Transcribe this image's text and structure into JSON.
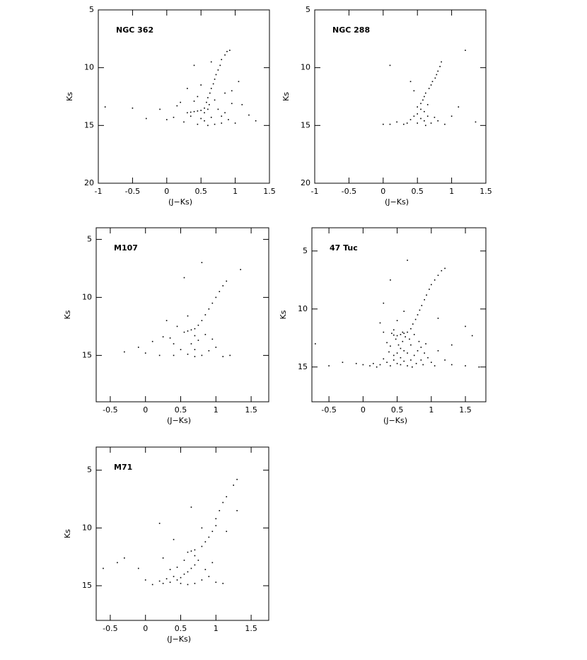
{
  "chart_data": [
    {
      "type": "scatter",
      "title": "NGC 362",
      "xlabel": "(J−Ks)",
      "ylabel": "Ks",
      "color": "#000000",
      "yinvert": true,
      "xlim": [
        -1,
        1.5
      ],
      "ylim": [
        5,
        20
      ],
      "xticks": [
        -1,
        -0.5,
        0,
        0.5,
        1,
        1.5
      ],
      "yticks": [
        5,
        10,
        15,
        20
      ],
      "x": [
        0.88,
        0.85,
        0.92,
        0.8,
        0.78,
        0.75,
        0.72,
        0.7,
        0.68,
        0.65,
        0.63,
        0.6,
        0.58,
        0.62,
        0.55,
        0.5,
        0.45,
        0.4,
        0.35,
        0.55,
        0.6,
        0.3,
        0.7,
        0.45,
        0.5,
        0.3,
        0.65,
        0.4,
        0.2,
        0.1,
        0.0,
        -0.1,
        -0.3,
        -0.5,
        -0.9,
        0.8,
        0.9,
        1.0,
        1.1,
        1.2,
        1.3,
        0.75,
        0.85,
        0.65,
        0.55,
        0.45,
        0.35,
        0.25,
        0.95,
        1.05,
        0.7,
        0.6,
        0.8,
        0.5,
        0.15,
        0.95,
        0.4,
        0.85
      ],
      "values": [
        8.6,
        8.9,
        8.5,
        9.3,
        9.8,
        10.2,
        10.6,
        11.0,
        11.4,
        11.8,
        12.2,
        12.6,
        13.0,
        13.2,
        13.5,
        13.7,
        13.75,
        13.8,
        13.85,
        13.9,
        13.6,
        13.9,
        12.8,
        12.5,
        11.5,
        11.8,
        9.5,
        9.8,
        13.0,
        14.3,
        14.5,
        13.6,
        14.4,
        13.5,
        13.4,
        14.2,
        14.5,
        14.8,
        13.2,
        14.1,
        14.6,
        13.6,
        13.9,
        14.3,
        14.6,
        14.9,
        14.2,
        14.7,
        12.0,
        11.2,
        14.9,
        15.0,
        14.8,
        14.4,
        13.3,
        13.1,
        12.9,
        12.2
      ]
    },
    {
      "type": "scatter",
      "title": "NGC 288",
      "xlabel": "(J−Ks)",
      "ylabel": "Ks",
      "color": "#000000",
      "yinvert": true,
      "xlim": [
        -1,
        1.5
      ],
      "ylim": [
        5,
        20
      ],
      "xticks": [
        -1,
        -0.5,
        0,
        0.5,
        1,
        1.5
      ],
      "yticks": [
        5,
        10,
        15,
        20
      ],
      "x": [
        1.2,
        0.85,
        0.83,
        0.8,
        0.78,
        0.76,
        0.72,
        0.7,
        0.67,
        0.62,
        0.6,
        0.58,
        0.55,
        0.5,
        0.55,
        0.6,
        0.5,
        0.45,
        0.55,
        0.6,
        0.65,
        0.4,
        0.35,
        0.3,
        0.2,
        0.1,
        0.0,
        0.7,
        0.8,
        0.9,
        1.0,
        1.1,
        1.35,
        0.1,
        0.4,
        0.45,
        0.65,
        0.5,
        0.75,
        0.62
      ],
      "values": [
        8.5,
        9.5,
        9.9,
        10.3,
        10.6,
        10.9,
        11.2,
        11.5,
        11.8,
        12.2,
        12.5,
        12.8,
        13.1,
        13.4,
        13.6,
        13.8,
        14.0,
        14.2,
        14.4,
        14.6,
        14.2,
        14.5,
        14.8,
        14.9,
        14.7,
        14.9,
        14.9,
        14.8,
        14.6,
        14.9,
        14.2,
        13.4,
        14.7,
        9.8,
        11.2,
        12.0,
        13.2,
        14.8,
        14.3,
        15.0
      ]
    },
    {
      "type": "scatter",
      "title": "M107",
      "xlabel": "(J−Ks)",
      "ylabel": "Ks",
      "color": "#000000",
      "yinvert": true,
      "xlim": [
        -0.7,
        1.75
      ],
      "ylim": [
        4,
        19
      ],
      "xticks": [
        -0.5,
        0,
        0.5,
        1,
        1.5
      ],
      "yticks": [
        5,
        10,
        15
      ],
      "x": [
        1.35,
        0.8,
        0.55,
        1.15,
        1.1,
        1.05,
        1.0,
        0.95,
        0.9,
        0.85,
        0.8,
        0.75,
        0.7,
        0.65,
        0.6,
        0.55,
        0.7,
        0.75,
        0.65,
        0.7,
        0.6,
        0.5,
        0.4,
        0.35,
        0.25,
        0.1,
        0.0,
        -0.1,
        -0.3,
        0.2,
        0.4,
        0.8,
        0.9,
        1.0,
        1.1,
        1.2,
        0.85,
        0.95,
        0.45,
        0.6,
        0.3,
        0.7
      ],
      "values": [
        7.6,
        7.0,
        8.3,
        8.6,
        9.0,
        9.5,
        10.0,
        10.5,
        11.0,
        11.5,
        12.0,
        12.4,
        12.7,
        12.8,
        12.9,
        13.0,
        13.3,
        13.7,
        14.0,
        14.5,
        14.9,
        14.5,
        14.0,
        13.5,
        13.4,
        13.8,
        14.8,
        14.3,
        14.7,
        15.0,
        15.0,
        15.0,
        14.6,
        14.3,
        15.1,
        15.0,
        13.2,
        13.6,
        12.5,
        11.6,
        12.0,
        15.1
      ]
    },
    {
      "type": "scatter",
      "title": "47 Tuc",
      "xlabel": "(J−Ks)",
      "ylabel": "Ks",
      "color": "#000000",
      "yinvert": true,
      "xlim": [
        -0.75,
        1.8
      ],
      "ylim": [
        3,
        18
      ],
      "xticks": [
        -0.5,
        0,
        0.5,
        1,
        1.5
      ],
      "yticks": [
        5,
        10,
        15
      ],
      "x": [
        1.2,
        1.15,
        1.1,
        1.05,
        1.0,
        0.97,
        0.93,
        0.9,
        0.86,
        0.83,
        0.8,
        0.77,
        0.73,
        0.7,
        0.65,
        0.6,
        0.55,
        0.5,
        0.45,
        0.62,
        0.68,
        0.58,
        0.52,
        0.55,
        0.6,
        0.5,
        0.45,
        0.55,
        0.6,
        0.5,
        0.4,
        0.35,
        0.3,
        0.25,
        0.2,
        0.15,
        0.1,
        0.0,
        -0.1,
        -0.3,
        -0.5,
        0.65,
        0.7,
        0.75,
        0.8,
        0.85,
        0.9,
        0.95,
        1.0,
        1.05,
        0.88,
        0.78,
        0.92,
        1.1,
        1.2,
        1.3,
        1.5,
        1.7,
        0.4,
        0.35,
        0.3,
        0.25,
        0.45,
        0.5,
        0.6,
        0.3,
        0.4,
        0.65,
        1.5,
        1.6,
        1.3,
        0.7,
        0.65,
        0.55,
        0.45,
        0.85,
        0.72,
        0.38,
        -0.7,
        1.1,
        0.48,
        0.42,
        0.58,
        0.75,
        0.82
      ],
      "values": [
        6.5,
        6.7,
        7.1,
        7.5,
        7.9,
        8.3,
        8.8,
        9.2,
        9.7,
        10.1,
        10.5,
        10.9,
        11.3,
        11.7,
        12.0,
        12.1,
        12.2,
        12.3,
        12.25,
        12.4,
        12.6,
        12.8,
        13.1,
        13.4,
        13.6,
        13.8,
        14.0,
        14.2,
        14.5,
        14.7,
        14.9,
        14.6,
        14.3,
        14.8,
        15.0,
        14.7,
        14.9,
        14.8,
        14.7,
        14.6,
        14.9,
        14.9,
        14.4,
        14.0,
        13.6,
        13.3,
        13.8,
        14.2,
        14.6,
        14.9,
        14.8,
        14.7,
        13.0,
        13.6,
        14.4,
        14.8,
        14.9,
        15.0,
        13.2,
        12.9,
        12.0,
        11.2,
        11.8,
        11.0,
        10.2,
        9.5,
        7.5,
        5.8,
        11.5,
        12.3,
        13.1,
        13.1,
        13.8,
        14.8,
        14.4,
        14.4,
        15.0,
        13.7,
        13.0,
        10.8,
        12.6,
        12.1,
        12.0,
        12.2,
        12.8
      ]
    },
    {
      "type": "scatter",
      "title": "M71",
      "xlabel": "(J−Ks)",
      "ylabel": "Ks",
      "color": "#000000",
      "yinvert": true,
      "xlim": [
        -0.7,
        1.75
      ],
      "ylim": [
        3,
        18
      ],
      "xticks": [
        -0.5,
        0,
        0.5,
        1,
        1.5
      ],
      "yticks": [
        5,
        10,
        15
      ],
      "x": [
        1.3,
        1.25,
        1.15,
        1.1,
        1.05,
        1.0,
        1.0,
        0.95,
        0.9,
        0.85,
        0.8,
        0.7,
        0.65,
        0.6,
        0.7,
        0.75,
        0.7,
        0.65,
        0.6,
        0.55,
        0.5,
        0.45,
        0.4,
        0.35,
        0.3,
        0.25,
        0.2,
        0.1,
        0.0,
        -0.1,
        -0.3,
        -0.4,
        -0.6,
        0.7,
        0.8,
        0.9,
        1.0,
        1.1,
        0.85,
        0.95,
        0.55,
        0.45,
        0.35,
        0.25,
        0.2,
        0.65,
        0.4,
        1.15,
        1.3,
        0.8,
        0.6,
        0.5
      ],
      "values": [
        5.8,
        6.3,
        7.3,
        7.8,
        8.5,
        9.2,
        9.8,
        10.3,
        10.8,
        11.2,
        11.6,
        11.9,
        12.0,
        12.1,
        12.4,
        12.8,
        13.2,
        13.5,
        13.8,
        14.0,
        14.3,
        14.5,
        14.2,
        14.7,
        14.4,
        14.8,
        14.6,
        14.9,
        14.5,
        13.5,
        12.6,
        13.0,
        13.5,
        14.8,
        14.5,
        14.2,
        14.7,
        14.8,
        13.6,
        13.0,
        12.8,
        13.4,
        13.6,
        12.6,
        9.6,
        8.2,
        11.0,
        10.3,
        8.5,
        10.0,
        14.9,
        14.8
      ]
    }
  ]
}
